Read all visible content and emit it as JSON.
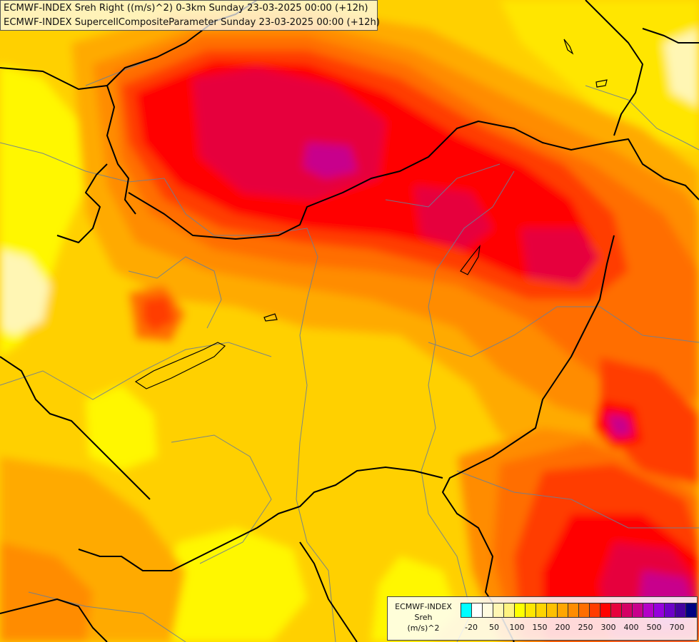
{
  "title_lines": [
    "ECMWF-INDEX Sreh Right ((m/s)^2) 0-3km Sunday 23-03-2025 00:00 (+12h)",
    "ECMWF-INDEX SupercellCompositeParameter Sunday 23-03-2025 00:00 (+12h)"
  ],
  "legend": {
    "model": "ECMWF-INDEX",
    "variable": "Sreh",
    "unit": "(m/s)^2",
    "colors": [
      "#00ffff",
      "#ffffff",
      "#fffbe0",
      "#fff6b4",
      "#fff380",
      "#ffff00",
      "#ffe600",
      "#ffd400",
      "#ffc000",
      "#ffa600",
      "#ff8c00",
      "#ff6e00",
      "#ff3c00",
      "#ff0000",
      "#e6003c",
      "#d40064",
      "#c8008c",
      "#b400c8",
      "#9600dc",
      "#6e00c8",
      "#4600a0",
      "#000082"
    ],
    "tick_labels": [
      "-20",
      "50",
      "100",
      "150",
      "200",
      "250",
      "300",
      "400",
      "500",
      "700"
    ]
  },
  "map_colors": {
    "base": "#ffd000",
    "light_yellow": "#fff700",
    "pale": "#fff6b4",
    "orange_light": "#ffaa00",
    "orange": "#ff8c00",
    "orange_dark": "#ff6e00",
    "red_orange": "#ff3c00",
    "red": "#ff0000",
    "crimson": "#e6003c",
    "magenta": "#c8008c",
    "border_black": "#000000",
    "border_gray": "#7a8a9a"
  }
}
